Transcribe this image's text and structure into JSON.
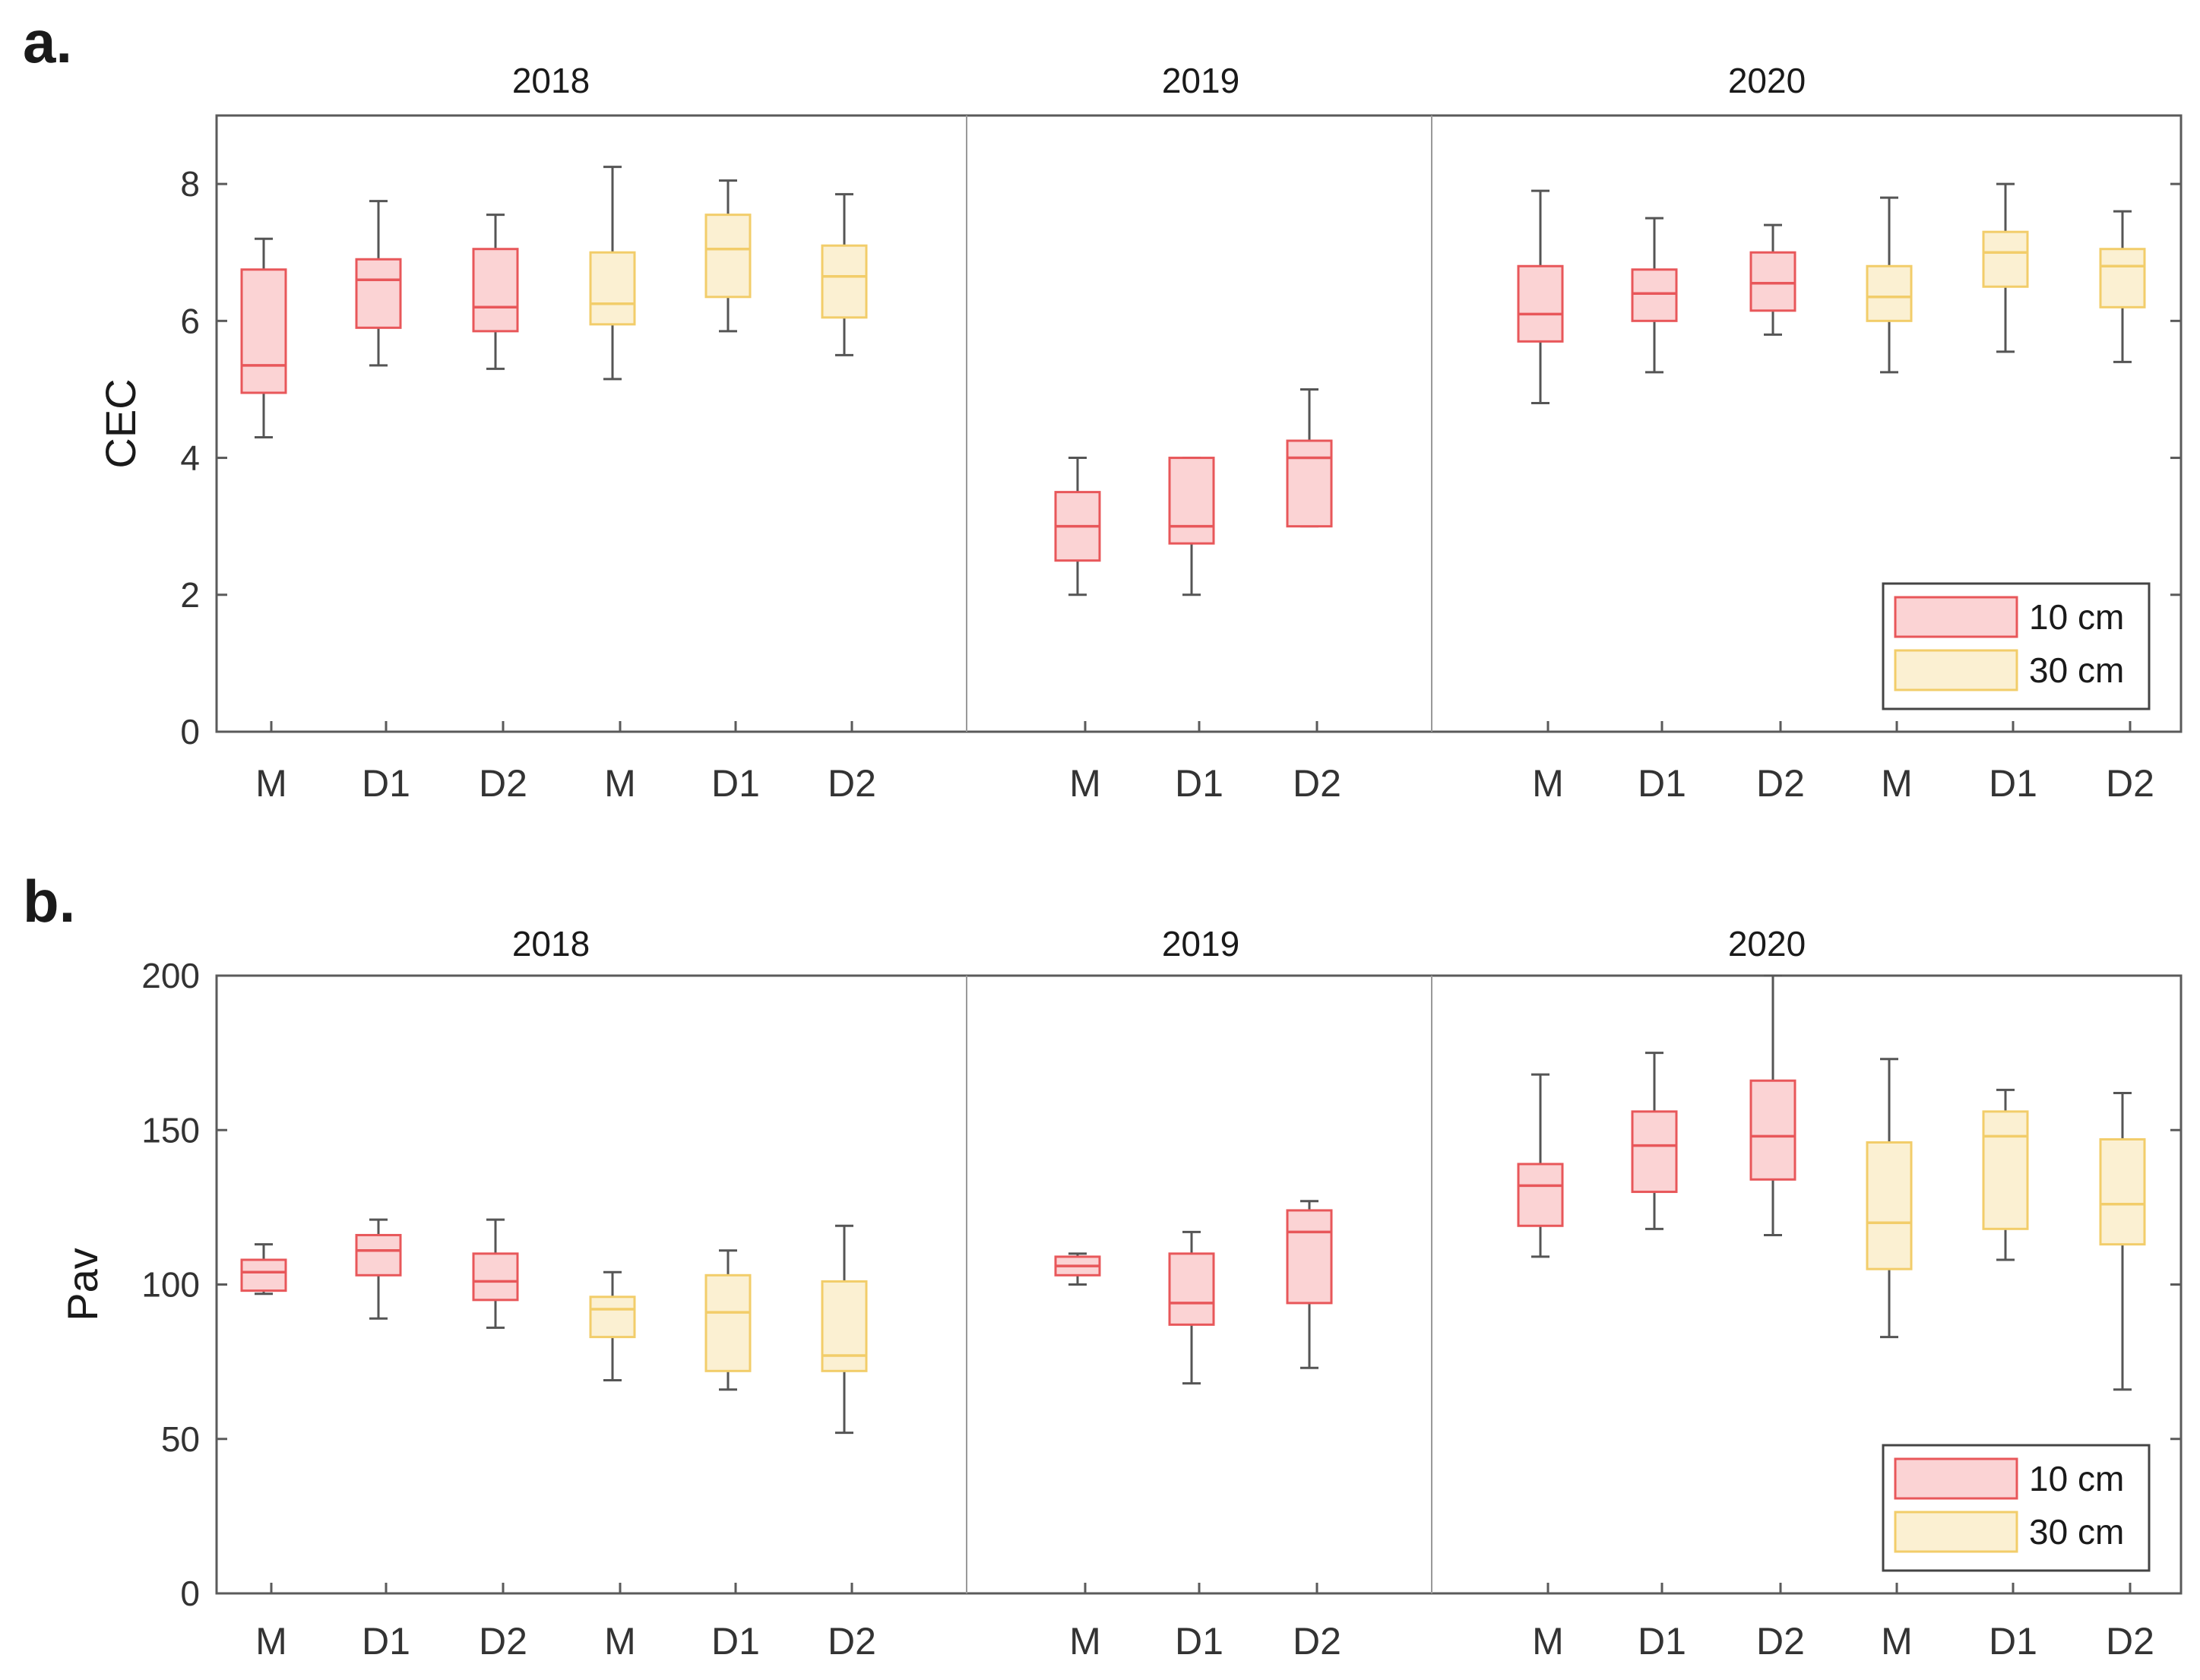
{
  "colors": {
    "cm10_stroke": "#e8575a",
    "cm10_fill": "#fbd3d4",
    "cm30_stroke": "#f2cd6a",
    "cm30_fill": "#fbf0d2",
    "whisker": "#555555",
    "axis": "#5a5a5a",
    "divider": "#999999"
  },
  "chart_data": [
    {
      "type": "boxplot",
      "panel_label": "a.",
      "ylabel": "CEC",
      "ylim": [
        0,
        9
      ],
      "yticks": [
        0,
        2,
        4,
        6,
        8
      ],
      "groups": [
        {
          "year": "2018",
          "categories": [
            "M",
            "D1",
            "D2",
            "M",
            "D1",
            "D2"
          ],
          "slots": [
            0,
            1,
            2,
            3,
            4,
            5
          ]
        },
        {
          "year": "2019",
          "categories": [
            "M",
            "D1",
            "D2"
          ],
          "slots": [
            7,
            8,
            9
          ]
        },
        {
          "year": "2020",
          "categories": [
            "M",
            "D1",
            "D2",
            "M",
            "D1",
            "D2"
          ],
          "slots": [
            11,
            12,
            13,
            14,
            15,
            16
          ]
        }
      ],
      "legend": [
        {
          "key": "10cm",
          "label": "10 cm"
        },
        {
          "key": "30cm",
          "label": "30 cm"
        }
      ],
      "boxes": [
        {
          "year": "2018",
          "category": "M",
          "depth": "10cm",
          "slot": 0,
          "whisker_low": 4.3,
          "q1": 4.95,
          "median": 5.35,
          "q3": 6.75,
          "whisker_high": 7.2
        },
        {
          "year": "2018",
          "category": "D1",
          "depth": "10cm",
          "slot": 1,
          "whisker_low": 5.35,
          "q1": 5.9,
          "median": 6.6,
          "q3": 6.9,
          "whisker_high": 7.75
        },
        {
          "year": "2018",
          "category": "D2",
          "depth": "10cm",
          "slot": 2,
          "whisker_low": 5.3,
          "q1": 5.85,
          "median": 6.2,
          "q3": 7.05,
          "whisker_high": 7.55
        },
        {
          "year": "2018",
          "category": "M",
          "depth": "30cm",
          "slot": 3,
          "whisker_low": 5.15,
          "q1": 5.95,
          "median": 6.25,
          "q3": 7.0,
          "whisker_high": 8.25
        },
        {
          "year": "2018",
          "category": "D1",
          "depth": "30cm",
          "slot": 4,
          "whisker_low": 5.85,
          "q1": 6.35,
          "median": 7.05,
          "q3": 7.55,
          "whisker_high": 8.05
        },
        {
          "year": "2018",
          "category": "D2",
          "depth": "30cm",
          "slot": 5,
          "whisker_low": 5.5,
          "q1": 6.05,
          "median": 6.65,
          "q3": 7.1,
          "whisker_high": 7.85
        },
        {
          "year": "2019",
          "category": "M",
          "depth": "10cm",
          "slot": 7,
          "whisker_low": 2.0,
          "q1": 2.5,
          "median": 3.0,
          "q3": 3.5,
          "whisker_high": 4.0
        },
        {
          "year": "2019",
          "category": "D1",
          "depth": "10cm",
          "slot": 8,
          "whisker_low": 2.0,
          "q1": 2.75,
          "median": 3.0,
          "q3": 4.0,
          "whisker_high": 4.0
        },
        {
          "year": "2019",
          "category": "D2",
          "depth": "10cm",
          "slot": 9,
          "whisker_low": 3.0,
          "q1": 3.0,
          "median": 4.0,
          "q3": 4.25,
          "whisker_high": 5.0
        },
        {
          "year": "2020",
          "category": "M",
          "depth": "10cm",
          "slot": 11,
          "whisker_low": 4.8,
          "q1": 5.7,
          "median": 6.1,
          "q3": 6.8,
          "whisker_high": 7.9
        },
        {
          "year": "2020",
          "category": "D1",
          "depth": "10cm",
          "slot": 12,
          "whisker_low": 5.25,
          "q1": 6.0,
          "median": 6.4,
          "q3": 6.75,
          "whisker_high": 7.5
        },
        {
          "year": "2020",
          "category": "D2",
          "depth": "10cm",
          "slot": 13,
          "whisker_low": 5.8,
          "q1": 6.15,
          "median": 6.55,
          "q3": 7.0,
          "whisker_high": 7.4
        },
        {
          "year": "2020",
          "category": "M",
          "depth": "30cm",
          "slot": 14,
          "whisker_low": 5.25,
          "q1": 6.0,
          "median": 6.35,
          "q3": 6.8,
          "whisker_high": 7.8
        },
        {
          "year": "2020",
          "category": "D1",
          "depth": "30cm",
          "slot": 15,
          "whisker_low": 5.55,
          "q1": 6.5,
          "median": 7.0,
          "q3": 7.3,
          "whisker_high": 8.0
        },
        {
          "year": "2020",
          "category": "D2",
          "depth": "30cm",
          "slot": 16,
          "whisker_low": 5.4,
          "q1": 6.2,
          "median": 6.8,
          "q3": 7.05,
          "whisker_high": 7.6
        }
      ]
    },
    {
      "type": "boxplot",
      "panel_label": "b.",
      "ylabel": "Pav",
      "ylim": [
        0,
        200
      ],
      "yticks": [
        0,
        50,
        100,
        150,
        200
      ],
      "groups": [
        {
          "year": "2018",
          "categories": [
            "M",
            "D1",
            "D2",
            "M",
            "D1",
            "D2"
          ],
          "slots": [
            0,
            1,
            2,
            3,
            4,
            5
          ]
        },
        {
          "year": "2019",
          "categories": [
            "M",
            "D1",
            "D2"
          ],
          "slots": [
            7,
            8,
            9
          ]
        },
        {
          "year": "2020",
          "categories": [
            "M",
            "D1",
            "D2",
            "M",
            "D1",
            "D2"
          ],
          "slots": [
            11,
            12,
            13,
            14,
            15,
            16
          ]
        }
      ],
      "legend": [
        {
          "key": "10cm",
          "label": "10 cm"
        },
        {
          "key": "30cm",
          "label": "30 cm"
        }
      ],
      "boxes": [
        {
          "year": "2018",
          "category": "M",
          "depth": "10cm",
          "slot": 0,
          "whisker_low": 97,
          "q1": 98,
          "median": 104,
          "q3": 108,
          "whisker_high": 113
        },
        {
          "year": "2018",
          "category": "D1",
          "depth": "10cm",
          "slot": 1,
          "whisker_low": 89,
          "q1": 103,
          "median": 111,
          "q3": 116,
          "whisker_high": 121
        },
        {
          "year": "2018",
          "category": "D2",
          "depth": "10cm",
          "slot": 2,
          "whisker_low": 86,
          "q1": 95,
          "median": 101,
          "q3": 110,
          "whisker_high": 121
        },
        {
          "year": "2018",
          "category": "M",
          "depth": "30cm",
          "slot": 3,
          "whisker_low": 69,
          "q1": 83,
          "median": 92,
          "q3": 96,
          "whisker_high": 104
        },
        {
          "year": "2018",
          "category": "D1",
          "depth": "30cm",
          "slot": 4,
          "whisker_low": 66,
          "q1": 72,
          "median": 91,
          "q3": 103,
          "whisker_high": 111
        },
        {
          "year": "2018",
          "category": "D2",
          "depth": "30cm",
          "slot": 5,
          "whisker_low": 52,
          "q1": 72,
          "median": 77,
          "q3": 101,
          "whisker_high": 119
        },
        {
          "year": "2019",
          "category": "M",
          "depth": "10cm",
          "slot": 7,
          "whisker_low": 100,
          "q1": 103,
          "median": 106,
          "q3": 109,
          "whisker_high": 110
        },
        {
          "year": "2019",
          "category": "D1",
          "depth": "10cm",
          "slot": 8,
          "whisker_low": 68,
          "q1": 87,
          "median": 94,
          "q3": 110,
          "whisker_high": 117
        },
        {
          "year": "2019",
          "category": "D2",
          "depth": "10cm",
          "slot": 9,
          "whisker_low": 73,
          "q1": 94,
          "median": 117,
          "q3": 124,
          "whisker_high": 127
        },
        {
          "year": "2020",
          "category": "M",
          "depth": "10cm",
          "slot": 11,
          "whisker_low": 109,
          "q1": 119,
          "median": 132,
          "q3": 139,
          "whisker_high": 168
        },
        {
          "year": "2020",
          "category": "D1",
          "depth": "10cm",
          "slot": 12,
          "whisker_low": 118,
          "q1": 130,
          "median": 145,
          "q3": 156,
          "whisker_high": 175
        },
        {
          "year": "2020",
          "category": "D2",
          "depth": "10cm",
          "slot": 13,
          "whisker_low": 116,
          "q1": 134,
          "median": 148,
          "q3": 166,
          "whisker_high": 200
        },
        {
          "year": "2020",
          "category": "M",
          "depth": "30cm",
          "slot": 14,
          "whisker_low": 83,
          "q1": 105,
          "median": 120,
          "q3": 146,
          "whisker_high": 173
        },
        {
          "year": "2020",
          "category": "D1",
          "depth": "30cm",
          "slot": 15,
          "whisker_low": 108,
          "q1": 118,
          "median": 148,
          "q3": 156,
          "whisker_high": 163
        },
        {
          "year": "2020",
          "category": "D2",
          "depth": "30cm",
          "slot": 16,
          "whisker_low": 66,
          "q1": 113,
          "median": 126,
          "q3": 147,
          "whisker_high": 162
        }
      ]
    }
  ]
}
